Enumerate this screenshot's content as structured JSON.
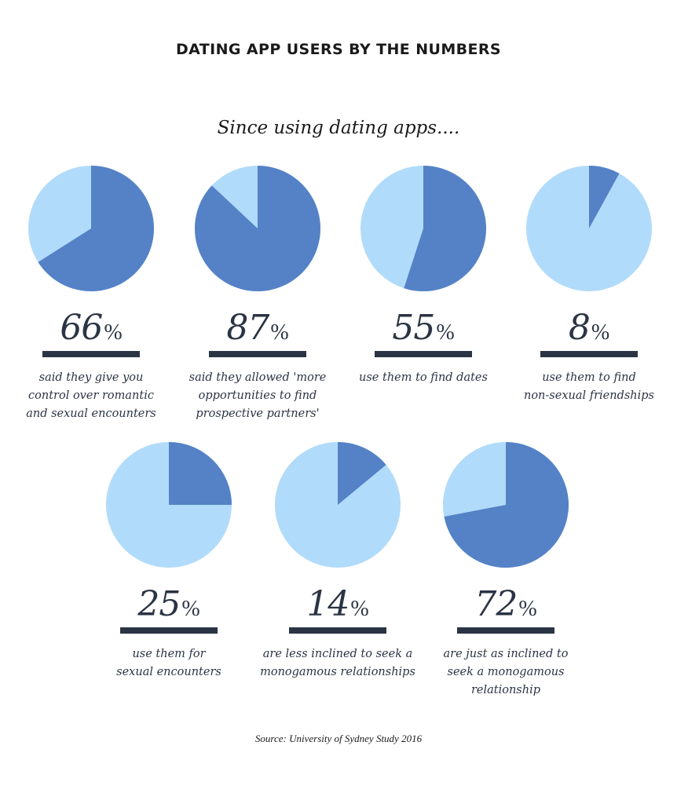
{
  "title": {
    "part1": "DATING APP USERS BY THE ",
    "part2": "NUMBERS"
  },
  "subtitle": "Since using dating apps....",
  "colors": {
    "dark": "#5582c6",
    "light": "#b1dbfa",
    "text": "#2b3444"
  },
  "chart_data": [
    {
      "type": "pie",
      "values": [
        66,
        34
      ],
      "stat": "66",
      "unit": "%",
      "description": "said they give you\ncontrol over romantic\nand sexual encounters"
    },
    {
      "type": "pie",
      "values": [
        87,
        13
      ],
      "stat": "87",
      "unit": "%",
      "description": "said they allowed 'more\nopportunities to find\nprospective partners'"
    },
    {
      "type": "pie",
      "values": [
        55,
        45
      ],
      "stat": "55",
      "unit": "%",
      "description": "use them to find dates"
    },
    {
      "type": "pie",
      "values": [
        8,
        92
      ],
      "stat": "8",
      "unit": "%",
      "description": "use them to find\nnon-sexual friendships"
    },
    {
      "type": "pie",
      "values": [
        25,
        75
      ],
      "stat": "25",
      "unit": "%",
      "description": "use them for\nsexual encounters"
    },
    {
      "type": "pie",
      "values": [
        14,
        86
      ],
      "stat": "14",
      "unit": "%",
      "description": "are less inclined to seek a\nmonogamous relationships"
    },
    {
      "type": "pie",
      "values": [
        72,
        28
      ],
      "stat": "72",
      "unit": "%",
      "description": "are just as inclined to\nseek a monogamous\nrelationship"
    }
  ],
  "source": "Source: University of Sydney Study 2016"
}
